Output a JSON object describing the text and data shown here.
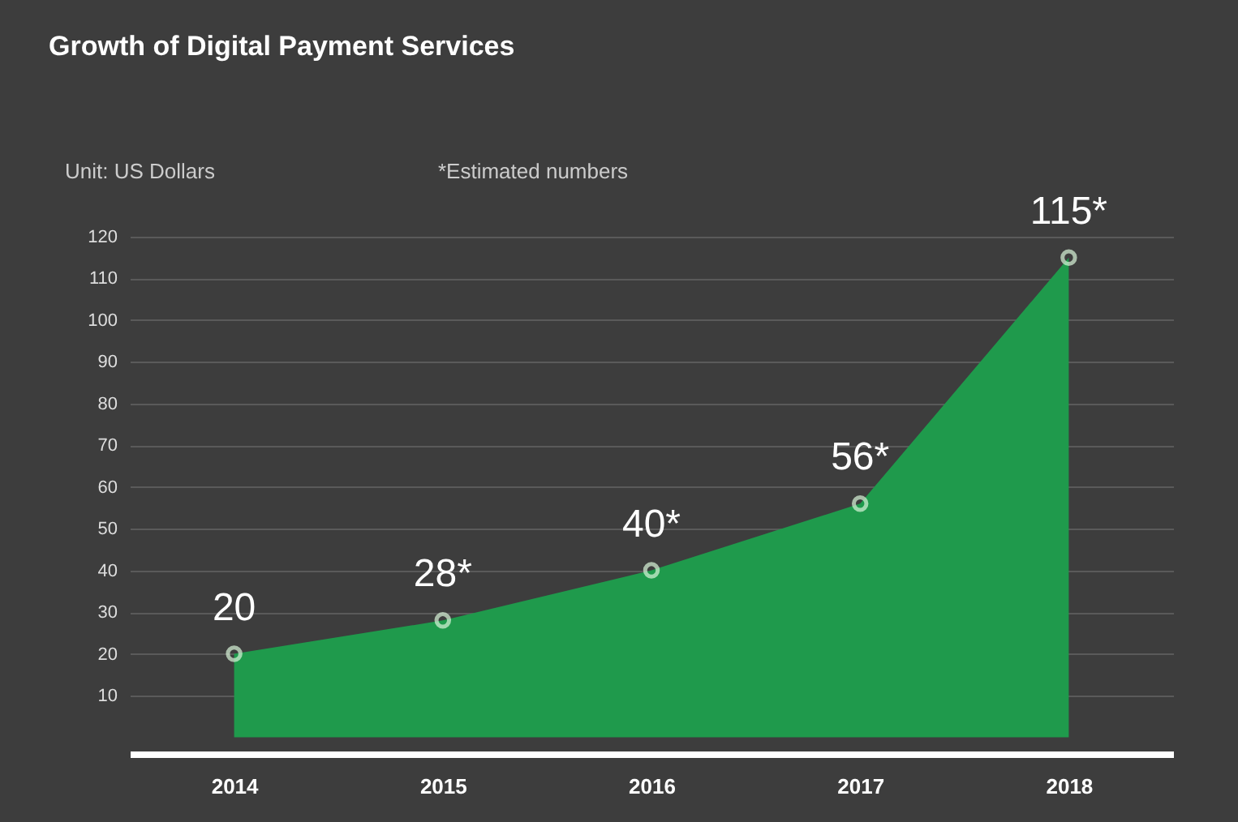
{
  "chart_data": {
    "type": "area",
    "title": "Growth of Digital Payment Services",
    "annotations": [
      "Unit: US Dollars",
      "*Estimated numbers"
    ],
    "categories": [
      "2014",
      "2015",
      "2016",
      "2017",
      "2018"
    ],
    "values": [
      20,
      28,
      40,
      56,
      115
    ],
    "value_labels": [
      "20",
      "28*",
      "40*",
      "56*",
      "115*"
    ],
    "color": "#1f9a4c",
    "ylim": [
      -4,
      120
    ],
    "yticks": [
      10,
      20,
      30,
      40,
      50,
      60,
      70,
      80,
      90,
      100,
      110,
      120
    ],
    "grid": "y",
    "marker": "circle"
  }
}
